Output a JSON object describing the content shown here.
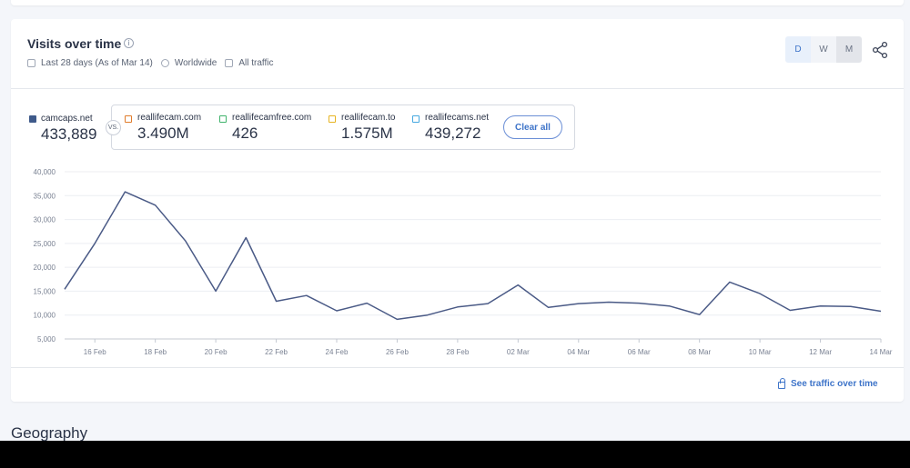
{
  "card": {
    "title": "Visits over time",
    "info_icon": "i",
    "meta": {
      "date_range": "Last 28 days (As of Mar 14)",
      "region": "Worldwide",
      "traffic": "All traffic"
    },
    "granularity": [
      "D",
      "W",
      "M"
    ],
    "selected_granularity": "D"
  },
  "main_site": {
    "name": "camcaps.net",
    "value": "433,889",
    "color": "#3e5a8a"
  },
  "vs_label": "VS.",
  "competitors": [
    {
      "name": "reallifecam.com",
      "value": "3.490M",
      "color": "#e07b2a"
    },
    {
      "name": "reallifecamfree.com",
      "value": "426",
      "color": "#3fb36b"
    },
    {
      "name": "reallifecam.to",
      "value": "1.575M",
      "color": "#e6b422"
    },
    {
      "name": "reallifecams.net",
      "value": "439,272",
      "color": "#45a8e0"
    }
  ],
  "clear_all": "Clear all",
  "see_traffic": "See traffic over time",
  "next_section": "Geography",
  "chart_data": {
    "type": "line",
    "x": [
      "15 Feb",
      "16 Feb",
      "17 Feb",
      "18 Feb",
      "19 Feb",
      "20 Feb",
      "21 Feb",
      "22 Feb",
      "23 Feb",
      "24 Feb",
      "25 Feb",
      "26 Feb",
      "27 Feb",
      "28 Feb",
      "01 Mar",
      "02 Mar",
      "03 Mar",
      "04 Mar",
      "05 Mar",
      "06 Mar",
      "07 Mar",
      "08 Mar",
      "09 Mar",
      "10 Mar",
      "11 Mar",
      "12 Mar",
      "13 Mar",
      "14 Mar"
    ],
    "xticks": [
      "16 Feb",
      "18 Feb",
      "20 Feb",
      "22 Feb",
      "24 Feb",
      "26 Feb",
      "28 Feb",
      "02 Mar",
      "04 Mar",
      "06 Mar",
      "08 Mar",
      "10 Mar",
      "12 Mar",
      "14 Mar"
    ],
    "series": [
      {
        "name": "camcaps.net",
        "color": "#4a5a86",
        "values": [
          15400,
          25000,
          35800,
          33000,
          25500,
          15000,
          26200,
          12900,
          14100,
          10900,
          12500,
          9100,
          10000,
          11700,
          12400,
          16300,
          11600,
          12400,
          12700,
          12500,
          11900,
          10100,
          16900,
          14500,
          11000,
          11900,
          11800,
          10800
        ]
      }
    ],
    "yticks": [
      "40,000",
      "35,000",
      "30,000",
      "25,000",
      "20,000",
      "15,000",
      "10,000",
      "5,000"
    ],
    "ylim": [
      5000,
      40000
    ],
    "grid": true,
    "title": "",
    "xlabel": "",
    "ylabel": ""
  }
}
